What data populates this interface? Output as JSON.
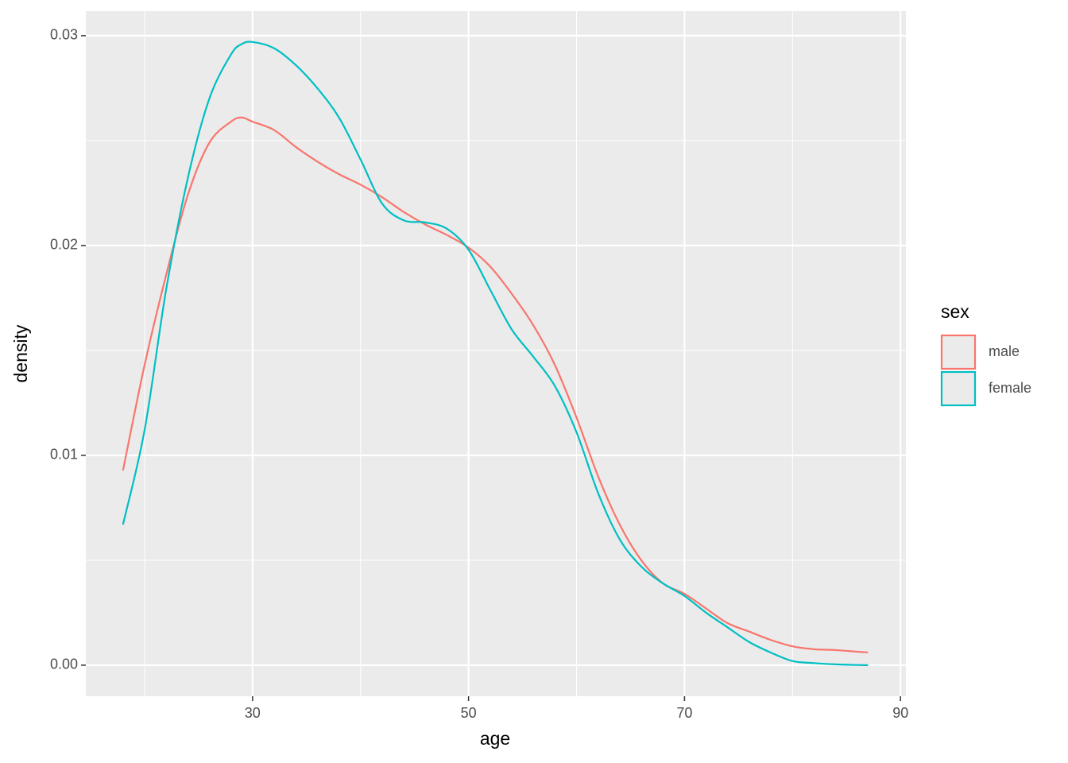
{
  "chart_data": {
    "type": "line",
    "x_label": "age",
    "y_label": "density",
    "x": [
      18,
      20,
      22,
      24,
      26,
      28,
      29,
      30,
      32,
      34,
      36,
      38,
      40,
      42,
      44,
      46,
      48,
      50,
      52,
      54,
      56,
      58,
      60,
      62,
      64,
      66,
      68,
      70,
      72,
      74,
      76,
      78,
      80,
      82,
      84,
      86,
      87
    ],
    "series": [
      {
        "name": "male",
        "color": "#F8766D",
        "values": [
          0.00928,
          0.0143,
          0.0186,
          0.0224,
          0.0249,
          0.0259,
          0.0261,
          0.0259,
          0.0255,
          0.0247,
          0.024,
          0.0234,
          0.0229,
          0.0223,
          0.0216,
          0.021,
          0.0205,
          0.0199,
          0.019,
          0.0177,
          0.0162,
          0.0143,
          0.0118,
          0.009,
          0.0067,
          0.005,
          0.0039,
          0.0034,
          0.0027,
          0.002,
          0.0016,
          0.0012,
          0.0009,
          0.00076,
          0.00072,
          0.00064,
          0.00061
        ]
      },
      {
        "name": "female",
        "color": "#00BFC4",
        "values": [
          0.0067,
          0.0112,
          0.0179,
          0.0232,
          0.027,
          0.0291,
          0.0296,
          0.0297,
          0.0294,
          0.0286,
          0.0275,
          0.0261,
          0.0241,
          0.022,
          0.0212,
          0.0211,
          0.0208,
          0.0198,
          0.0179,
          0.016,
          0.0147,
          0.0133,
          0.0111,
          0.0082,
          0.006,
          0.0047,
          0.0039,
          0.0033,
          0.0025,
          0.0018,
          0.0011,
          0.0006,
          0.0002,
          0.0001,
          4e-05,
          1e-05,
          0
        ]
      }
    ],
    "legend_title": "sex",
    "legend_position": "right",
    "xlim": [
      14.56,
      90.5
    ],
    "xticks": [
      30,
      50,
      70,
      90
    ],
    "ylim": [
      -0.00148,
      0.03117
    ],
    "yticks": [
      {
        "value": 0,
        "label": "0.00"
      },
      {
        "value": 0.01,
        "label": "0.01"
      },
      {
        "value": 0.02,
        "label": "0.02"
      },
      {
        "value": 0.03,
        "label": "0.03"
      }
    ],
    "grid": true
  }
}
